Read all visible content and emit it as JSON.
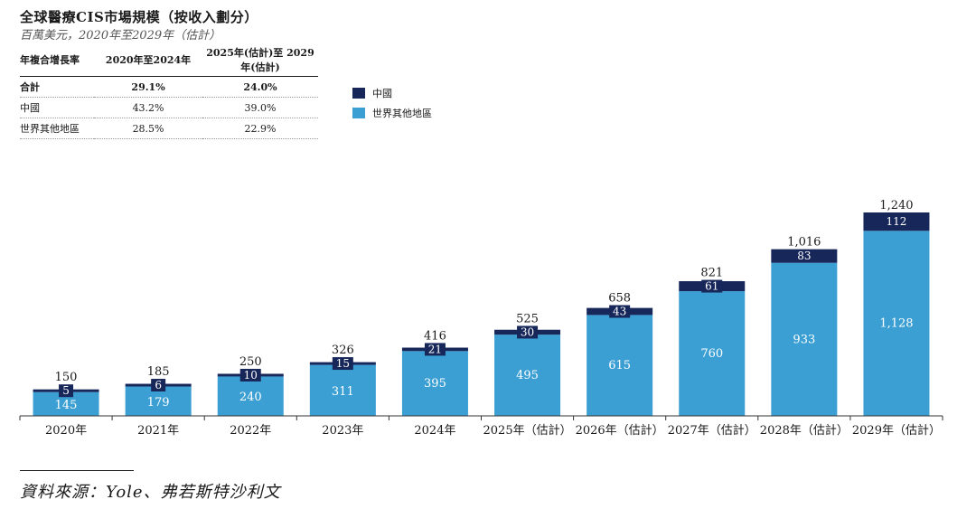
{
  "title": "全球醫療CIS市場規模（按收入劃分）",
  "subtitle": "百萬美元，2020年至2029年（估計）",
  "cagr_table": {
    "headers": [
      "年複合增長率",
      "2020年至2024年",
      "2025年(估計)至 2029年(估計)"
    ],
    "rows": [
      {
        "label": "合計",
        "c1": "29.1%",
        "c2": "24.0%"
      },
      {
        "label": "中國",
        "c1": "43.2%",
        "c2": "39.0%"
      },
      {
        "label": "世界其他地區",
        "c1": "28.5%",
        "c2": "22.9%"
      }
    ]
  },
  "legend": {
    "china": "中國",
    "row": "世界其他地區"
  },
  "colors": {
    "china": "#17275a",
    "row": "#3b9fd3"
  },
  "source": "資料來源：Yole、弗若斯特沙利文",
  "chart_data": {
    "type": "bar",
    "stacked": true,
    "title": "全球醫療CIS市場規模（按收入劃分）",
    "ylabel": "百萬美元",
    "categories": [
      "2020年",
      "2021年",
      "2022年",
      "2023年",
      "2024年",
      "2025年（估計）",
      "2026年（估計）",
      "2027年（估計）",
      "2028年（估計）",
      "2029年（估計）"
    ],
    "series": [
      {
        "name": "世界其他地區",
        "values": [
          145,
          179,
          240,
          311,
          395,
          495,
          615,
          760,
          933,
          1128
        ],
        "labels": [
          "145",
          "179",
          "240",
          "311",
          "395",
          "495",
          "615",
          "760",
          "933",
          "1,128"
        ]
      },
      {
        "name": "中國",
        "values": [
          5,
          6,
          10,
          15,
          21,
          30,
          43,
          61,
          83,
          112
        ],
        "labels": [
          "5",
          "6",
          "10",
          "15",
          "21",
          "30",
          "43",
          "61",
          "83",
          "112"
        ]
      }
    ],
    "totals": [
      150,
      185,
      250,
      326,
      416,
      525,
      658,
      821,
      1016,
      1240
    ],
    "total_labels": [
      "150",
      "185",
      "250",
      "326",
      "416",
      "525",
      "658",
      "821",
      "1,016",
      "1,240"
    ],
    "ylim": [
      0,
      1240
    ]
  }
}
